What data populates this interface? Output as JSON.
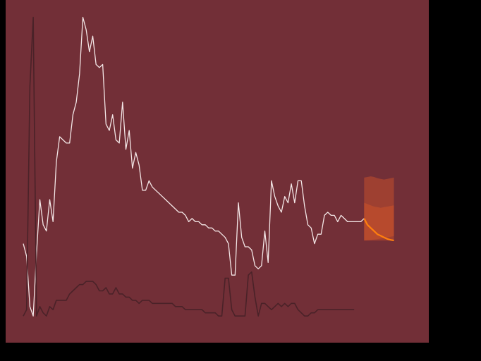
{
  "colors": {
    "background": "#000000",
    "plot_background": "#722f37",
    "observed_line": "#f3e6e6",
    "secondary_line": "#4a2228",
    "forecast_line": "#ff7f0e",
    "forecast_band": "#d4572a"
  },
  "chart_data": {
    "type": "line",
    "title": "",
    "xlabel": "",
    "ylabel": "",
    "grid": false,
    "legend": "none",
    "axes_visible": false,
    "xlim": [
      0,
      117
    ],
    "ylim": [
      0,
      100
    ],
    "series": [
      {
        "role": "observed",
        "x": [
          0,
          1,
          2,
          3,
          4,
          5,
          6,
          7,
          8,
          9,
          10,
          11,
          12,
          13,
          14,
          15,
          16,
          17,
          18,
          19,
          20,
          21,
          22,
          23,
          24,
          25,
          26,
          27,
          28,
          29,
          30,
          31,
          32,
          33,
          34,
          35,
          36,
          37,
          38,
          39,
          40,
          41,
          42,
          43,
          44,
          45,
          46,
          47,
          48,
          49,
          50,
          51,
          52,
          53,
          54,
          55,
          56,
          57,
          58,
          59,
          60,
          61,
          62,
          63,
          64,
          65,
          66,
          67,
          68,
          69,
          70,
          71,
          72,
          73,
          74,
          75,
          76,
          77,
          78,
          79,
          80,
          81,
          82,
          83,
          84,
          85,
          86,
          87,
          88,
          89,
          90,
          91,
          92,
          93,
          94,
          95,
          96,
          97,
          98,
          99,
          100,
          101,
          102,
          103
        ],
        "values": [
          27,
          23,
          7,
          4,
          24,
          41,
          33,
          31,
          41,
          34,
          53,
          61,
          60,
          59,
          59,
          68,
          72,
          81,
          99,
          95,
          88,
          93,
          84,
          83,
          84,
          65,
          63,
          68,
          60,
          59,
          72,
          57,
          63,
          51,
          56,
          52,
          44,
          44,
          47,
          45,
          44,
          43,
          42,
          41,
          40,
          39,
          38,
          37,
          37,
          36,
          34,
          35,
          34,
          34,
          33,
          33,
          32,
          32,
          31,
          31,
          30,
          29,
          27,
          17,
          17,
          40,
          29,
          26,
          26,
          25,
          20,
          19,
          20,
          31,
          21,
          47,
          42,
          39,
          37,
          42,
          40,
          46,
          40,
          47,
          47,
          39,
          33,
          32,
          27,
          30,
          30,
          36,
          37,
          36,
          36,
          34,
          36,
          35,
          34,
          34,
          34,
          34,
          34,
          35
        ]
      },
      {
        "role": "secondary",
        "x": [
          0,
          1,
          2,
          3,
          4,
          5,
          6,
          7,
          8,
          9,
          10,
          11,
          12,
          13,
          14,
          15,
          16,
          17,
          18,
          19,
          20,
          21,
          22,
          23,
          24,
          25,
          26,
          27,
          28,
          29,
          30,
          31,
          32,
          33,
          34,
          35,
          36,
          37,
          38,
          39,
          40,
          41,
          42,
          43,
          44,
          45,
          46,
          47,
          48,
          49,
          50,
          51,
          52,
          53,
          54,
          55,
          56,
          57,
          58,
          59,
          60,
          61,
          62,
          63,
          64,
          65,
          66,
          67,
          68,
          69,
          70,
          71,
          72,
          73,
          74,
          75,
          76,
          77,
          78,
          79,
          80,
          81,
          82,
          83,
          84,
          85,
          86,
          87,
          88,
          89,
          90,
          91,
          92,
          93,
          94,
          95,
          96,
          97,
          98,
          99,
          100
        ],
        "values": [
          4,
          6,
          77,
          99,
          4,
          7,
          5,
          4,
          7,
          6,
          9,
          9,
          9,
          9,
          11,
          12,
          13,
          14,
          14,
          15,
          15,
          15,
          14,
          12,
          12,
          13,
          11,
          11,
          13,
          11,
          11,
          10,
          10,
          9,
          9,
          8,
          9,
          9,
          9,
          8,
          8,
          8,
          8,
          8,
          8,
          8,
          7,
          7,
          7,
          6,
          6,
          6,
          6,
          6,
          6,
          5,
          5,
          5,
          5,
          4,
          4,
          16,
          16,
          6,
          4,
          4,
          4,
          4,
          17,
          18,
          10,
          4,
          8,
          8,
          7,
          6,
          7,
          8,
          7,
          8,
          7,
          8,
          8,
          6,
          5,
          4,
          4,
          5,
          5,
          6,
          6,
          6,
          6,
          6,
          6,
          6,
          6,
          6,
          6,
          6,
          6
        ]
      },
      {
        "role": "forecast",
        "x": [
          103,
          104,
          105,
          106,
          107,
          108,
          109,
          110,
          111,
          112
        ],
        "values": [
          35,
          33,
          32,
          31,
          30,
          29.5,
          29,
          28.5,
          28.2,
          28
        ],
        "outer_band": {
          "lower": [
            28,
            28,
            28,
            28,
            28,
            28,
            28,
            28,
            28,
            28
          ],
          "upper": [
            48,
            48.2,
            48.4,
            48.2,
            47.8,
            47.6,
            47.4,
            47.6,
            47.8,
            48
          ]
        },
        "inner_band": {
          "lower": [
            28,
            28.1,
            28.2,
            28.3,
            28.4,
            28.6,
            28.8,
            29,
            29.2,
            29.4
          ],
          "upper": [
            40,
            39.6,
            39.2,
            38.8,
            38.6,
            38.4,
            38.6,
            38.8,
            39,
            39.2
          ]
        }
      }
    ]
  }
}
